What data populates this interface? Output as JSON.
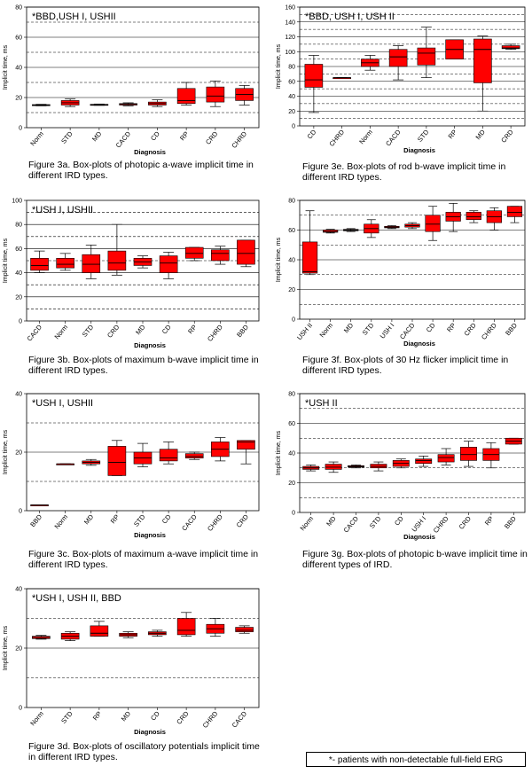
{
  "chart_data": [
    {
      "id": "3a",
      "type": "box",
      "annotation": "*BBD,USH I, USHII",
      "ylabel": "Implicit time, ms",
      "xlabel": "Diagnosis",
      "ylim": [
        0,
        80
      ],
      "yticks": [
        0,
        20,
        40,
        60,
        80
      ],
      "grid": {
        "solid": [
          20,
          40,
          60,
          80
        ],
        "dashed": [
          10,
          30,
          50,
          70
        ]
      },
      "tick_rotation": 50,
      "categories": [
        "Norm",
        "STD",
        "MD",
        "CACD",
        "CD",
        "RP",
        "CRD",
        "CHRD"
      ],
      "boxes": [
        {
          "min": 14.5,
          "q1": 14.8,
          "median": 15,
          "q3": 15.3,
          "max": 15.5
        },
        {
          "min": 14,
          "q1": 15,
          "median": 16.5,
          "q3": 18,
          "max": 19
        },
        {
          "min": 14.8,
          "q1": 15,
          "median": 15.2,
          "q3": 15.5,
          "max": 15.7
        },
        {
          "min": 14.5,
          "q1": 15,
          "median": 15.5,
          "q3": 16,
          "max": 16.5
        },
        {
          "min": 14,
          "q1": 15,
          "median": 16,
          "q3": 17,
          "max": 18.5
        },
        {
          "min": 15,
          "q1": 16,
          "median": 18,
          "q3": 26,
          "max": 30
        },
        {
          "min": 14,
          "q1": 17,
          "median": 21,
          "q3": 27,
          "max": 31
        },
        {
          "min": 15,
          "q1": 18,
          "median": 22,
          "q3": 26,
          "max": 28
        }
      ],
      "caption": "Figure 3a. Box-plots of photopic a-wave implicit time in different IRD types."
    },
    {
      "id": "3b",
      "type": "box",
      "annotation": "*USH I, USHII",
      "ylabel": "Implicit time, ms",
      "xlabel": "Diagnosis",
      "ylim": [
        0,
        100
      ],
      "yticks": [
        0,
        20,
        40,
        60,
        80,
        100
      ],
      "grid": {
        "solid": [
          20,
          40,
          60,
          80
        ],
        "dashed": [
          10,
          30,
          50,
          70,
          90
        ]
      },
      "tick_rotation": 50,
      "categories": [
        "CACD",
        "Norm",
        "STD",
        "CRD",
        "MD",
        "CD",
        "RP",
        "CHRD",
        "BBD"
      ],
      "boxes": [
        {
          "min": 40,
          "q1": 42,
          "median": 46,
          "q3": 52,
          "max": 58
        },
        {
          "min": 42,
          "q1": 44,
          "median": 47,
          "q3": 52,
          "max": 56
        },
        {
          "min": 35,
          "q1": 40,
          "median": 47,
          "q3": 55,
          "max": 63
        },
        {
          "min": 38,
          "q1": 42,
          "median": 48,
          "q3": 58,
          "max": 80
        },
        {
          "min": 44,
          "q1": 46,
          "median": 49,
          "q3": 52,
          "max": 54
        },
        {
          "min": 35,
          "q1": 40,
          "median": 48,
          "q3": 54,
          "max": 57
        },
        {
          "min": 50,
          "q1": 52,
          "median": 56,
          "q3": 61,
          "max": 61
        },
        {
          "min": 47,
          "q1": 50,
          "median": 56,
          "q3": 59,
          "max": 62
        },
        {
          "min": 45,
          "q1": 47,
          "median": 56,
          "q3": 67,
          "max": 67
        }
      ],
      "caption": "Figure 3b. Box-plots of maximum b-wave implicit time in different IRD types."
    },
    {
      "id": "3c",
      "type": "box",
      "annotation": "*USH I, USHII",
      "ylabel": "Implicit time, ms",
      "xlabel": "Diagnosis",
      "ylim": [
        0,
        40
      ],
      "yticks": [
        0,
        20,
        40
      ],
      "grid": {
        "solid": [
          20,
          40
        ],
        "dashed": [
          10,
          30
        ]
      },
      "tick_rotation": 50,
      "categories": [
        "BBD",
        "Norm",
        "MD",
        "RP",
        "STD",
        "CD",
        "CACD",
        "CHRD",
        "CRD"
      ],
      "boxes": [
        {
          "min": 2,
          "q1": 2,
          "median": 2,
          "q3": 2,
          "max": 2
        },
        {
          "min": 16,
          "q1": 16,
          "median": 16,
          "q3": 16,
          "max": 16
        },
        {
          "min": 15.5,
          "q1": 16,
          "median": 16.5,
          "q3": 17,
          "max": 17.5
        },
        {
          "min": 12,
          "q1": 12,
          "median": 16.5,
          "q3": 22,
          "max": 24
        },
        {
          "min": 15,
          "q1": 16,
          "median": 18,
          "q3": 20,
          "max": 23
        },
        {
          "min": 16,
          "q1": 17,
          "median": 18,
          "q3": 21,
          "max": 23.5
        },
        {
          "min": 17.5,
          "q1": 18,
          "median": 18.5,
          "q3": 19.5,
          "max": 20
        },
        {
          "min": 17,
          "q1": 18.5,
          "median": 21,
          "q3": 23.5,
          "max": 25
        },
        {
          "min": 16,
          "q1": 21,
          "median": 23.5,
          "q3": 24,
          "max": 24
        }
      ],
      "caption": "Figure 3c. Box-plots of maximum a-wave implicit time in different IRD types."
    },
    {
      "id": "3d",
      "type": "box",
      "annotation": "*USH I, USH II, BBD",
      "ylabel": "Implicit time, ms",
      "xlabel": "Diagnosis",
      "ylim": [
        0,
        40
      ],
      "yticks": [
        0,
        20,
        40
      ],
      "grid": {
        "solid": [
          20,
          40
        ],
        "dashed": [
          10,
          30
        ]
      },
      "tick_rotation": 50,
      "categories": [
        "Norm",
        "STD",
        "RP",
        "MD",
        "CD",
        "CRD",
        "CHRD",
        "CACD"
      ],
      "boxes": [
        {
          "min": 23,
          "q1": 23.2,
          "median": 23.6,
          "q3": 24,
          "max": 24.3
        },
        {
          "min": 22.5,
          "q1": 23,
          "median": 24,
          "q3": 25,
          "max": 25.5
        },
        {
          "min": 24,
          "q1": 24,
          "median": 25,
          "q3": 27.5,
          "max": 29
        },
        {
          "min": 23.5,
          "q1": 24,
          "median": 24.5,
          "q3": 25,
          "max": 25.5
        },
        {
          "min": 24,
          "q1": 24.5,
          "median": 25,
          "q3": 25.5,
          "max": 26
        },
        {
          "min": 24,
          "q1": 24.5,
          "median": 26,
          "q3": 30,
          "max": 32
        },
        {
          "min": 24,
          "q1": 25,
          "median": 26.5,
          "q3": 28,
          "max": 30
        },
        {
          "min": 25,
          "q1": 25.5,
          "median": 26,
          "q3": 27,
          "max": 27.5
        }
      ],
      "caption": "Figure 3d. Box-plots of oscillatory potentials implicit time in different IRD types."
    },
    {
      "id": "3e",
      "type": "box",
      "annotation": "*BBD, USH I, USH II",
      "ylabel": "Implicit time, ms",
      "xlabel": "Diagnosis",
      "ylim": [
        0,
        160
      ],
      "yticks": [
        0,
        20,
        40,
        60,
        80,
        100,
        120,
        140,
        160
      ],
      "grid": {
        "solid": [
          20,
          40,
          60,
          80,
          100,
          120,
          140,
          160
        ],
        "dashed": [
          10,
          30,
          50,
          70,
          90,
          110,
          130,
          150
        ]
      },
      "tick_rotation": 50,
      "categories": [
        "CD",
        "CHRD",
        "Norm",
        "CACD",
        "STD",
        "RP",
        "MD",
        "CRD"
      ],
      "boxes": [
        {
          "min": 18,
          "q1": 52,
          "median": 62,
          "q3": 83,
          "max": 95
        },
        {
          "min": 65,
          "q1": 65,
          "median": 65,
          "q3": 65,
          "max": 65
        },
        {
          "min": 75,
          "q1": 80,
          "median": 85,
          "q3": 90,
          "max": 95
        },
        {
          "min": 62,
          "q1": 80,
          "median": 93,
          "q3": 103,
          "max": 108
        },
        {
          "min": 65,
          "q1": 82,
          "median": 98,
          "q3": 105,
          "max": 133
        },
        {
          "min": 90,
          "q1": 90,
          "median": 103,
          "q3": 116,
          "max": 116
        },
        {
          "min": 20,
          "q1": 58,
          "median": 103,
          "q3": 117,
          "max": 121
        },
        {
          "min": 103,
          "q1": 104,
          "median": 105,
          "q3": 108,
          "max": 110
        }
      ],
      "caption": "Figure 3e. Box-plots of rod b-wave implicit time in different IRD types."
    },
    {
      "id": "3f",
      "type": "box",
      "annotation": "",
      "ylabel": "Implicit time, ms",
      "xlabel": "Diagnosis",
      "ylim": [
        0,
        80
      ],
      "yticks": [
        0,
        20,
        40,
        60,
        80
      ],
      "grid": {
        "solid": [
          20,
          40,
          60,
          80
        ],
        "dashed": [
          10,
          30,
          50,
          70
        ]
      },
      "tick_rotation": 50,
      "categories": [
        "USH II",
        "Norm",
        "MD",
        "STD",
        "USH I",
        "CACD",
        "CD",
        "RP",
        "CRD",
        "CHRD",
        "BBD"
      ],
      "boxes": [
        {
          "min": 30,
          "q1": 31,
          "median": 32,
          "q3": 52,
          "max": 73
        },
        {
          "min": 58,
          "q1": 58.5,
          "median": 59,
          "q3": 60,
          "max": 60.5
        },
        {
          "min": 59,
          "q1": 59.5,
          "median": 60,
          "q3": 60.5,
          "max": 61
        },
        {
          "min": 55,
          "q1": 58,
          "median": 61,
          "q3": 64,
          "max": 67
        },
        {
          "min": 61,
          "q1": 61.5,
          "median": 62,
          "q3": 62.5,
          "max": 63
        },
        {
          "min": 61,
          "q1": 62,
          "median": 63,
          "q3": 64,
          "max": 65
        },
        {
          "min": 53,
          "q1": 59,
          "median": 64,
          "q3": 70,
          "max": 76
        },
        {
          "min": 59,
          "q1": 66,
          "median": 69,
          "q3": 72,
          "max": 78
        },
        {
          "min": 65,
          "q1": 67,
          "median": 69,
          "q3": 72,
          "max": 73
        },
        {
          "min": 60,
          "q1": 65,
          "median": 69,
          "q3": 73,
          "max": 75
        },
        {
          "min": 65,
          "q1": 69,
          "median": 72,
          "q3": 76,
          "max": 76
        }
      ],
      "caption": "Figure 3f. Box-plots of 30 Hz flicker implicit time in different IRD types."
    },
    {
      "id": "3g",
      "type": "box",
      "annotation": "*USH II",
      "ylabel": "Implicit time, ms",
      "xlabel": "Diagnosis",
      "ylim": [
        0,
        80
      ],
      "yticks": [
        0,
        20,
        40,
        60,
        80
      ],
      "grid": {
        "solid": [
          20,
          40,
          60,
          80
        ],
        "dashed": [
          10,
          30,
          50,
          70
        ]
      },
      "tick_rotation": 50,
      "categories": [
        "Norm",
        "MD",
        "CACD",
        "STD",
        "CD",
        "USH I",
        "CHRD",
        "CRD",
        "RP",
        "BBD"
      ],
      "boxes": [
        {
          "min": 28,
          "q1": 29,
          "median": 30,
          "q3": 31,
          "max": 32
        },
        {
          "min": 27,
          "q1": 29,
          "median": 30.5,
          "q3": 32.5,
          "max": 34
        },
        {
          "min": 30,
          "q1": 30.5,
          "median": 31,
          "q3": 31.5,
          "max": 32
        },
        {
          "min": 28,
          "q1": 30,
          "median": 31,
          "q3": 32.5,
          "max": 34
        },
        {
          "min": 30,
          "q1": 31,
          "median": 33,
          "q3": 35,
          "max": 36
        },
        {
          "min": 31,
          "q1": 33,
          "median": 35,
          "q3": 36,
          "max": 38
        },
        {
          "min": 32,
          "q1": 34,
          "median": 37,
          "q3": 39,
          "max": 43
        },
        {
          "min": 31,
          "q1": 35,
          "median": 39,
          "q3": 44,
          "max": 48
        },
        {
          "min": 30,
          "q1": 35,
          "median": 39,
          "q3": 43,
          "max": 47
        },
        {
          "min": 46,
          "q1": 46,
          "median": 48,
          "q3": 50,
          "max": 50
        }
      ],
      "caption": "Figure 3g. Box-plots of photopic b-wave implicit time in different types of IRD."
    }
  ],
  "footnote": "*- patients with non-detectable full-field ERG",
  "colors": {
    "box_fill": "#ff0000",
    "box_stroke": "#000000",
    "median": "#000000"
  }
}
